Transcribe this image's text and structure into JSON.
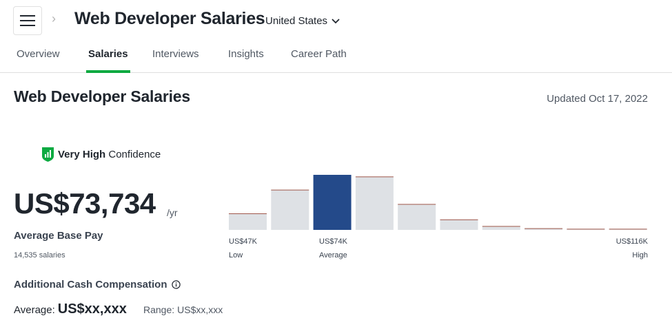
{
  "header": {
    "title": "Web Developer Salaries",
    "location": "United States"
  },
  "tabs": [
    {
      "label": "Overview",
      "active": false
    },
    {
      "label": "Salaries",
      "active": true
    },
    {
      "label": "Interviews",
      "active": false
    },
    {
      "label": "Insights",
      "active": false
    },
    {
      "label": "Career Path",
      "active": false
    }
  ],
  "section": {
    "title": "Web Developer Salaries",
    "updated": "Updated Oct 17, 2022"
  },
  "confidence": {
    "strong": "Very High",
    "rest": "Confidence"
  },
  "pay": {
    "amount": "US$73,734",
    "unit": "/yr",
    "label": "Average Base Pay",
    "count": "14,535 salaries"
  },
  "additional": {
    "title": "Additional Cash Compensation",
    "average_label": "Average:",
    "average_value": "US$xx,xxx",
    "range_label": "Range:",
    "range_value": "US$xx,xxx"
  },
  "chart_data": {
    "type": "bar",
    "values": [
      0.3,
      0.73,
      1.0,
      0.97,
      0.47,
      0.19,
      0.07,
      0.03,
      0.02,
      0.02
    ],
    "highlight_index": 2,
    "labels": {
      "low_value": "US$47K",
      "low_text": "Low",
      "avg_value": "US$74K",
      "avg_text": "Average",
      "high_value": "US$116K",
      "high_text": "High"
    },
    "colors": {
      "bar": "#dee1e5",
      "highlight": "#244a8a",
      "cap": "#a0574a"
    }
  }
}
